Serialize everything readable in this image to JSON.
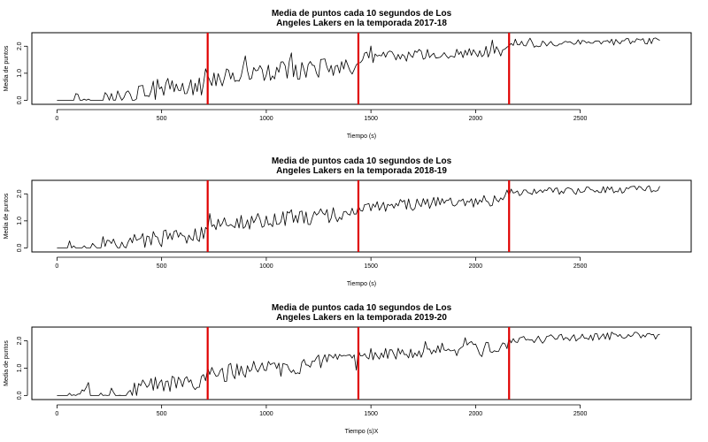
{
  "colors": {
    "series": "#000000",
    "period_line": "#e00000",
    "frame": "#000000"
  },
  "chart_data": [
    {
      "type": "line",
      "title_lines": [
        "Media de puntos cada 10 segundos de Los",
        "Angeles Lakers en la temporada 2017-18"
      ],
      "xlabel": "Tiempo (s)",
      "ylabel": "Media de puntos",
      "xlim": [
        -120,
        3030
      ],
      "ylim": [
        -0.15,
        2.5
      ],
      "x_ticks": [
        0,
        500,
        1000,
        1500,
        2000,
        2500
      ],
      "x_tick_labels": [
        "0",
        "500",
        "1000",
        "1500",
        "2000",
        "2500"
      ],
      "y_ticks": [
        0,
        1,
        2
      ],
      "y_tick_labels": [
        "0.0",
        "1.0",
        "2.0"
      ],
      "vertical_lines_x": [
        720,
        1440,
        2160
      ],
      "series": [
        {
          "x_step": 10,
          "x_end": 2880,
          "quarter_levels": [
            [
              0.0,
              0.0,
              0.45,
              0.5
            ],
            [
              0.8,
              1.0,
              1.15,
              1.3
            ],
            [
              1.55,
              1.65,
              1.75,
              1.8
            ],
            [
              2.05,
              2.1,
              2.15,
              2.2
            ]
          ],
          "quarter_noise": [
            0.35,
            0.35,
            0.22,
            0.12
          ]
        }
      ]
    },
    {
      "type": "line",
      "title_lines": [
        "Media de puntos cada 10 segundos de Los",
        "Angeles Lakers en la temporada 2018-19"
      ],
      "xlabel": "Tiempo (s)",
      "ylabel": "Media de puntos",
      "xlim": [
        -120,
        3030
      ],
      "ylim": [
        -0.15,
        2.5
      ],
      "x_ticks": [
        0,
        500,
        1000,
        1500,
        2000,
        2500
      ],
      "x_tick_labels": [
        "0",
        "500",
        "1000",
        "1500",
        "2000",
        "2500"
      ],
      "y_ticks": [
        0,
        1,
        2
      ],
      "y_tick_labels": [
        "0.0",
        "1.0",
        "2.0"
      ],
      "vertical_lines_x": [
        720,
        1440,
        2160
      ],
      "series": [
        {
          "x_step": 10,
          "x_end": 2880,
          "quarter_levels": [
            [
              0.0,
              0.0,
              0.4,
              0.5
            ],
            [
              0.8,
              1.0,
              1.15,
              1.3
            ],
            [
              1.5,
              1.6,
              1.7,
              1.8
            ],
            [
              2.05,
              2.1,
              2.15,
              2.2
            ]
          ],
          "quarter_noise": [
            0.3,
            0.3,
            0.22,
            0.14
          ]
        }
      ]
    },
    {
      "type": "line",
      "title_lines": [
        "Media de puntos cada 10 segundos de Los",
        "Angeles Lakers en la temporada 2019-20"
      ],
      "xlabel": "Tiempo (s)X",
      "ylabel": "Media de puntos",
      "xlim": [
        -120,
        3030
      ],
      "ylim": [
        -0.15,
        2.5
      ],
      "x_ticks": [
        0,
        500,
        1000,
        1500,
        2000,
        2500
      ],
      "x_tick_labels": [
        "0",
        "500",
        "1000",
        "1500",
        "2000",
        "2500"
      ],
      "y_ticks": [
        0,
        1,
        2
      ],
      "y_tick_labels": [
        "0.0",
        "1.0",
        "2.0"
      ],
      "vertical_lines_x": [
        720,
        1440,
        2160
      ],
      "series": [
        {
          "x_step": 10,
          "x_end": 2880,
          "quarter_levels": [
            [
              0.0,
              0.0,
              0.4,
              0.5
            ],
            [
              0.75,
              0.95,
              1.1,
              1.25
            ],
            [
              1.45,
              1.6,
              1.7,
              1.8
            ],
            [
              2.0,
              2.1,
              2.15,
              2.2
            ]
          ],
          "quarter_noise": [
            0.3,
            0.35,
            0.25,
            0.14
          ]
        }
      ]
    }
  ]
}
